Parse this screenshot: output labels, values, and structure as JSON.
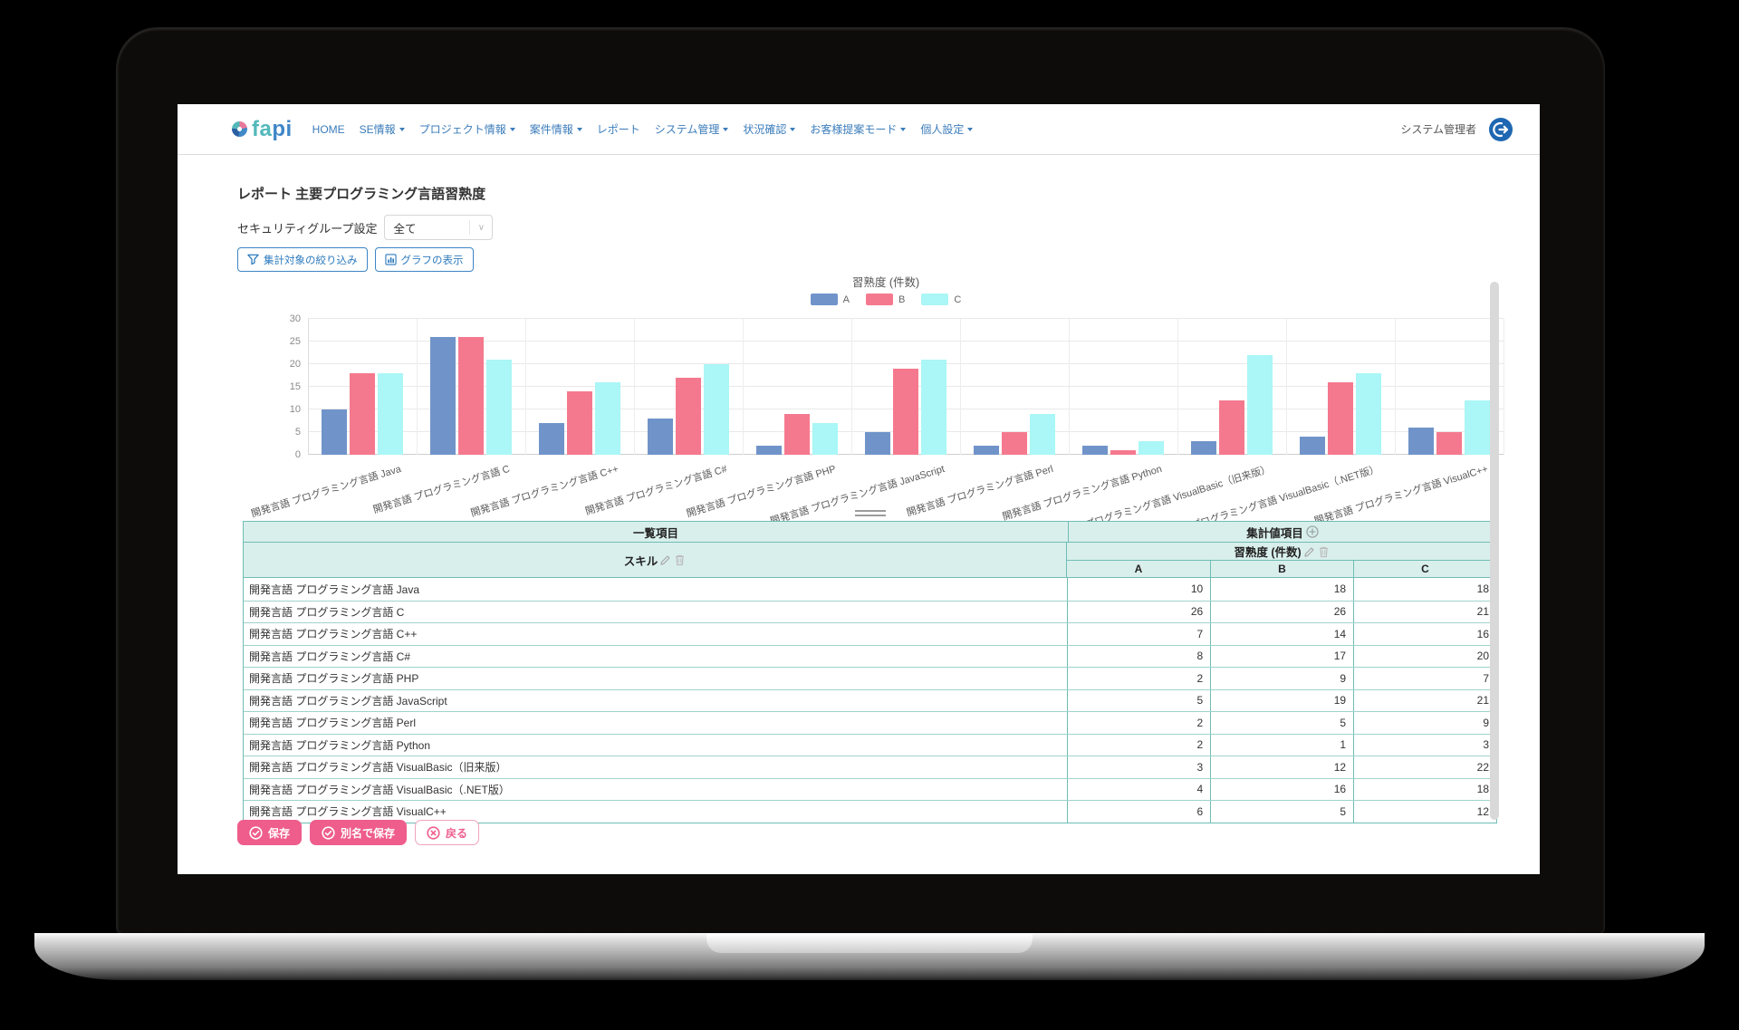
{
  "nav": {
    "logo": {
      "text_teal": "fa",
      "text_blue": "pi"
    },
    "items": [
      {
        "label": "HOME",
        "dropdown": false
      },
      {
        "label": "SE情報",
        "dropdown": true
      },
      {
        "label": "プロジェクト情報",
        "dropdown": true
      },
      {
        "label": "案件情報",
        "dropdown": true
      },
      {
        "label": "レポート",
        "dropdown": false
      },
      {
        "label": "システム管理",
        "dropdown": true
      },
      {
        "label": "状況確認",
        "dropdown": true
      },
      {
        "label": "お客様提案モード",
        "dropdown": true
      },
      {
        "label": "個人設定",
        "dropdown": true
      }
    ],
    "user": {
      "name": "システム管理者"
    }
  },
  "page": {
    "title": "レポート 主要プログラミング言語習熟度",
    "security_group": {
      "label": "セキュリティグループ設定",
      "value": "全て"
    },
    "toolbar": {
      "filter_button": "集計対象の絞り込み",
      "graph_button": "グラフの表示"
    }
  },
  "chart_data": {
    "type": "bar",
    "title": "習熟度 (件数)",
    "categories": [
      "開発言語 プログラミング言語 Java",
      "開発言語 プログラミング言語 C",
      "開発言語 プログラミング言語 C++",
      "開発言語 プログラミング言語 C#",
      "開発言語 プログラミング言語 PHP",
      "開発言語 プログラミング言語 JavaScript",
      "開発言語 プログラミング言語 Perl",
      "開発言語 プログラミング言語 Python",
      "開発言語 プログラミング言語 VisualBasic（旧来版）",
      "開発言語 プログラミング言語 VisualBasic（.NET版）",
      "開発言語 プログラミング言語 VisualC++"
    ],
    "series": [
      {
        "name": "A",
        "color": "#7094c9",
        "values": [
          10,
          26,
          7,
          8,
          2,
          5,
          2,
          2,
          3,
          4,
          6
        ]
      },
      {
        "name": "B",
        "color": "#f5798e",
        "values": [
          18,
          26,
          14,
          17,
          9,
          19,
          5,
          1,
          12,
          16,
          5
        ]
      },
      {
        "name": "C",
        "color": "#abf6f6",
        "values": [
          18,
          21,
          16,
          20,
          7,
          21,
          9,
          3,
          22,
          18,
          12
        ]
      }
    ],
    "ylim": [
      0,
      30
    ],
    "yticks": [
      0,
      5,
      10,
      15,
      20,
      25,
      30
    ],
    "grid": true,
    "legend_position": "top"
  },
  "table": {
    "group_headers": {
      "left": "一覧項目",
      "right": "集計値項目"
    },
    "skill_header": "スキル",
    "measure_header": "習熟度 (件数)",
    "value_columns": [
      "A",
      "B",
      "C"
    ],
    "rows": [
      {
        "skill": "開発言語 プログラミング言語 Java",
        "values": [
          10,
          18,
          18
        ]
      },
      {
        "skill": "開発言語 プログラミング言語 C",
        "values": [
          26,
          26,
          21
        ]
      },
      {
        "skill": "開発言語 プログラミング言語 C++",
        "values": [
          7,
          14,
          16
        ]
      },
      {
        "skill": "開発言語 プログラミング言語 C#",
        "values": [
          8,
          17,
          20
        ]
      },
      {
        "skill": "開発言語 プログラミング言語 PHP",
        "values": [
          2,
          9,
          7
        ]
      },
      {
        "skill": "開発言語 プログラミング言語 JavaScript",
        "values": [
          5,
          19,
          21
        ]
      },
      {
        "skill": "開発言語 プログラミング言語 Perl",
        "values": [
          2,
          5,
          9
        ]
      },
      {
        "skill": "開発言語 プログラミング言語 Python",
        "values": [
          2,
          1,
          3
        ]
      },
      {
        "skill": "開発言語 プログラミング言語 VisualBasic（旧来版）",
        "values": [
          3,
          12,
          22
        ]
      },
      {
        "skill": "開発言語 プログラミング言語 VisualBasic（.NET版）",
        "values": [
          4,
          16,
          18
        ]
      },
      {
        "skill": "開発言語 プログラミング言語 VisualC++",
        "values": [
          6,
          5,
          12
        ]
      }
    ]
  },
  "footer": {
    "save": "保存",
    "save_as": "別名で保存",
    "back": "戻る"
  }
}
